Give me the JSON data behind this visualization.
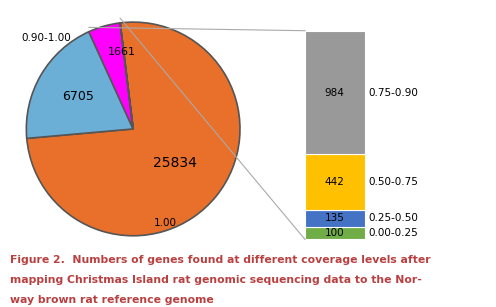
{
  "pie_values": [
    25834,
    6705,
    1661,
    1
  ],
  "pie_colors": [
    "#E8702A",
    "#6BAED6",
    "#FF00FF",
    "#FFFFFF"
  ],
  "pie_startangle": 97,
  "pie_label_09_10": "0.90-1.00",
  "pie_label_25834": "25834",
  "pie_label_6705": "6705",
  "pie_label_1661": "1661",
  "pie_label_100": "1.00",
  "bar_values": [
    984,
    442,
    135,
    100
  ],
  "bar_colors": [
    "#999999",
    "#FFC000",
    "#4472C4",
    "#70AD47"
  ],
  "bar_labels": [
    "984",
    "442",
    "135",
    "100"
  ],
  "bar_right_labels": [
    "0.75-0.90",
    "0.50-0.75",
    "0.25-0.50",
    "0.00-0.25"
  ],
  "caption_line1": "Figure 2.  Numbers of genes found at different coverage levels after",
  "caption_line2": "mapping Christmas Island rat genomic sequencing data to the Nor-",
  "caption_line3": "way brown rat reference genome",
  "caption_color": "#B94040",
  "bg_color": "#FFFFFF",
  "connector_color": "#AAAAAA",
  "edge_color": "#333333"
}
